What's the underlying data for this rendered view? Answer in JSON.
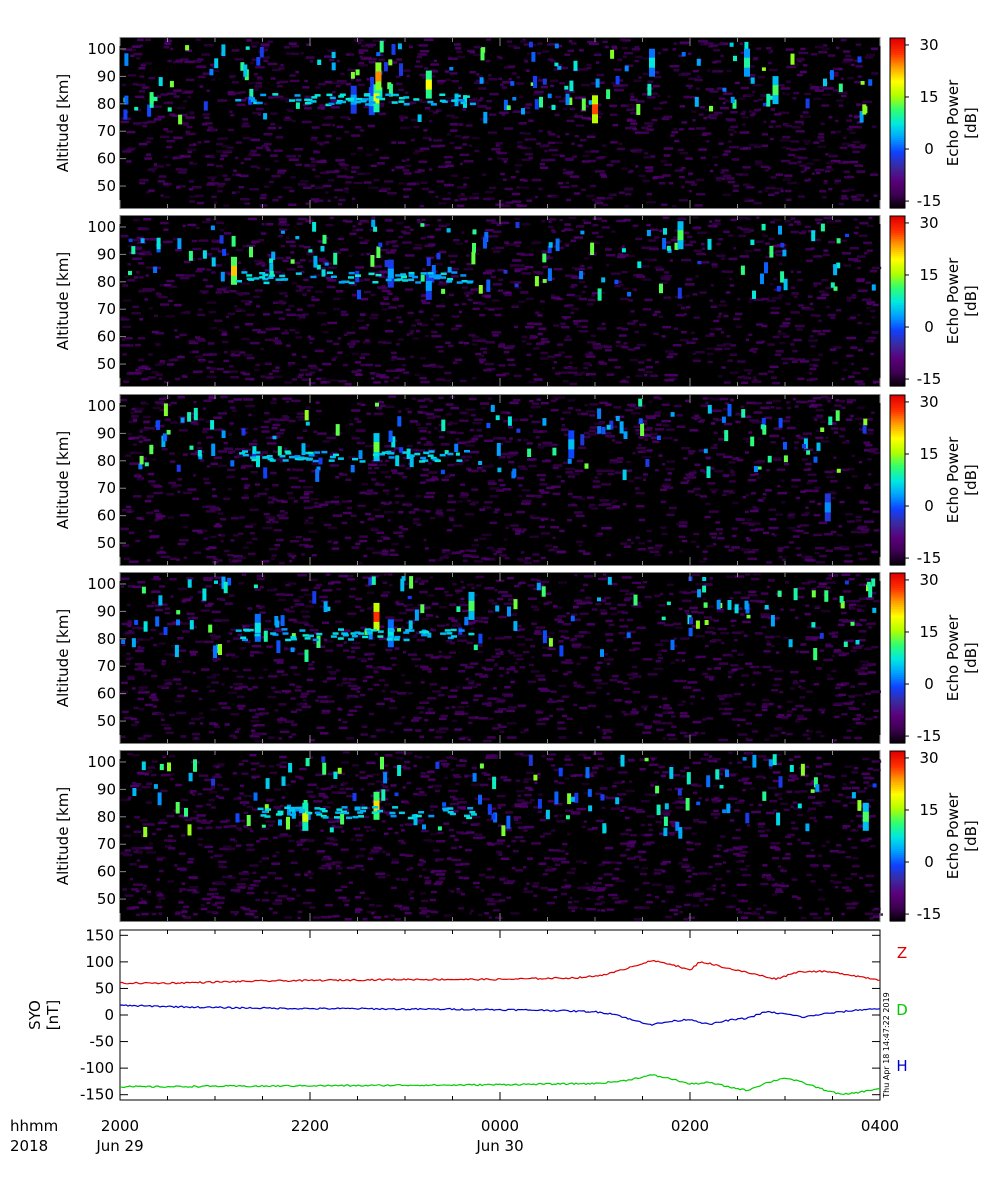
{
  "chart_data": [
    {
      "type": "heatmap",
      "panel": 1,
      "ylabel": "Altitude [km]",
      "yticks": [
        50,
        60,
        70,
        80,
        90,
        100
      ],
      "ylim": [
        42,
        104
      ],
      "colorbar": {
        "label_line1": "Echo Power",
        "label_line2": "[dB]",
        "ticks": [
          30,
          15,
          0,
          -15
        ],
        "range": [
          -17,
          32
        ]
      },
      "features": [
        {
          "t": 2.46,
          "alt": 81.5,
          "level": 0.42
        },
        {
          "t": 2.65,
          "alt": 81.0,
          "level": 0.45
        },
        {
          "t": 2.7,
          "alt": 82.0,
          "level": 0.72
        },
        {
          "t": 2.72,
          "alt": 90.0,
          "level": 0.85
        },
        {
          "t": 3.25,
          "alt": 87.0,
          "level": 0.75
        },
        {
          "t": 5.0,
          "alt": 78.0,
          "level": 0.9
        },
        {
          "t": 5.6,
          "alt": 95.0,
          "level": 0.5
        },
        {
          "t": 6.6,
          "alt": 95.0,
          "level": 0.55
        },
        {
          "t": 6.9,
          "alt": 85.0,
          "level": 0.6
        }
      ]
    },
    {
      "type": "heatmap",
      "panel": 2,
      "ylabel": "Altitude [km]",
      "yticks": [
        50,
        60,
        70,
        80,
        90,
        100
      ],
      "ylim": [
        42,
        104
      ],
      "colorbar": {
        "label_line1": "Echo Power",
        "label_line2": "[dB]",
        "ticks": [
          30,
          15,
          0,
          -15
        ],
        "range": [
          -17,
          32
        ]
      },
      "features": [
        {
          "t": 1.2,
          "alt": 84.0,
          "level": 0.8
        },
        {
          "t": 2.85,
          "alt": 83.0,
          "level": 0.42
        },
        {
          "t": 3.25,
          "alt": 78.5,
          "level": 0.42
        },
        {
          "t": 5.9,
          "alt": 97.0,
          "level": 0.6
        }
      ]
    },
    {
      "type": "heatmap",
      "panel": 3,
      "ylabel": "Altitude [km]",
      "yticks": [
        50,
        60,
        70,
        80,
        90,
        100
      ],
      "ylim": [
        42,
        104
      ],
      "colorbar": {
        "label_line1": "Echo Power",
        "label_line2": "[dB]",
        "ticks": [
          30,
          15,
          0,
          -15
        ],
        "range": [
          -17,
          32
        ]
      },
      "features": [
        {
          "t": 2.7,
          "alt": 85.0,
          "level": 0.62
        },
        {
          "t": 4.75,
          "alt": 86.0,
          "level": 0.45
        },
        {
          "t": 7.45,
          "alt": 63.0,
          "level": 0.4
        }
      ]
    },
    {
      "type": "heatmap",
      "panel": 4,
      "ylabel": "Altitude [km]",
      "yticks": [
        50,
        60,
        70,
        80,
        90,
        100
      ],
      "ylim": [
        42,
        104
      ],
      "colorbar": {
        "label_line1": "Echo Power",
        "label_line2": "[dB]",
        "ticks": [
          30,
          15,
          0,
          -15
        ],
        "range": [
          -17,
          32
        ]
      },
      "features": [
        {
          "t": 2.7,
          "alt": 88.0,
          "level": 0.92
        },
        {
          "t": 2.85,
          "alt": 82.0,
          "level": 0.5
        },
        {
          "t": 1.45,
          "alt": 84.0,
          "level": 0.5
        },
        {
          "t": 3.7,
          "alt": 92.0,
          "level": 0.6
        }
      ]
    },
    {
      "type": "heatmap",
      "panel": 5,
      "ylabel": "Altitude [km]",
      "yticks": [
        50,
        60,
        70,
        80,
        90,
        100
      ],
      "ylim": [
        42,
        104
      ],
      "colorbar": {
        "label_line1": "Echo Power",
        "label_line2": "[dB]",
        "ticks": [
          30,
          15,
          0,
          -15
        ],
        "range": [
          -17,
          32
        ]
      },
      "features": [
        {
          "t": 2.7,
          "alt": 84.0,
          "level": 0.78
        },
        {
          "t": 1.95,
          "alt": 80.0,
          "level": 0.7
        },
        {
          "t": 7.85,
          "alt": 80.0,
          "level": 0.6
        }
      ]
    },
    {
      "type": "line",
      "ylabel_line1": "SYO",
      "ylabel_line2": "[nT]",
      "ylim": [
        -160,
        160
      ],
      "yticks": [
        150,
        100,
        50,
        0,
        -50,
        -100,
        -150
      ],
      "xlim_hours": [
        0,
        8
      ],
      "side_label": "Thu Apr 18 14:47:22 2019",
      "series": [
        {
          "name": "Z",
          "color": "#dd0000",
          "x": [
            0,
            0.5,
            1,
            1.5,
            2,
            2.5,
            3,
            3.5,
            4,
            4.5,
            4.8,
            5.0,
            5.2,
            5.4,
            5.6,
            5.8,
            6.0,
            6.1,
            6.2,
            6.4,
            6.6,
            6.8,
            6.9,
            7.0,
            7.1,
            7.2,
            7.4,
            7.6,
            7.8,
            8.0
          ],
          "y": [
            60,
            60,
            62,
            64,
            65,
            66,
            67,
            67,
            67,
            69,
            70,
            73,
            80,
            92,
            102,
            96,
            84,
            100,
            97,
            88,
            80,
            72,
            68,
            73,
            80,
            82,
            82,
            78,
            72,
            66
          ]
        },
        {
          "name": "D",
          "color": "#00cc00",
          "x": [
            0,
            0.5,
            1,
            1.5,
            2,
            2.5,
            3,
            3.5,
            4,
            4.5,
            5.0,
            5.3,
            5.6,
            5.8,
            6.0,
            6.2,
            6.4,
            6.6,
            6.8,
            7.0,
            7.2,
            7.4,
            7.6,
            7.8,
            8.0
          ],
          "y": [
            -135,
            -135,
            -134,
            -134,
            -133,
            -133,
            -132,
            -132,
            -131,
            -130,
            -129,
            -124,
            -113,
            -120,
            -130,
            -127,
            -135,
            -142,
            -128,
            -118,
            -128,
            -140,
            -150,
            -145,
            -138
          ]
        },
        {
          "name": "H",
          "color": "#0000cc",
          "x": [
            0,
            0.5,
            1,
            1.5,
            2,
            2.5,
            3,
            3.5,
            4,
            4.5,
            5.0,
            5.2,
            5.4,
            5.6,
            5.8,
            6.0,
            6.2,
            6.4,
            6.6,
            6.8,
            7.0,
            7.2,
            7.4,
            7.6,
            7.8,
            8.0
          ],
          "y": [
            18,
            16,
            14,
            13,
            12,
            12,
            11,
            11,
            10,
            9,
            6,
            2,
            -10,
            -18,
            -12,
            -8,
            -18,
            -10,
            -6,
            6,
            2,
            -4,
            2,
            6,
            10,
            12
          ]
        }
      ]
    }
  ],
  "x_axis": {
    "caption_line1": "hhmm",
    "caption_line2": "2018",
    "ticks": [
      {
        "label": "2000",
        "date": "Jun 29"
      },
      {
        "label": "2200",
        "date": ""
      },
      {
        "label": "0000",
        "date": "Jun 30"
      },
      {
        "label": "0200",
        "date": ""
      },
      {
        "label": "0400",
        "date": ""
      }
    ]
  },
  "colors": {
    "colormap": [
      "#000000",
      "#3c0050",
      "#5a007a",
      "#3a2aa0",
      "#1040ff",
      "#00a0ff",
      "#00e8e0",
      "#30ff70",
      "#b0ff00",
      "#ffff00",
      "#ffa000",
      "#ff3000",
      "#e00000"
    ]
  }
}
